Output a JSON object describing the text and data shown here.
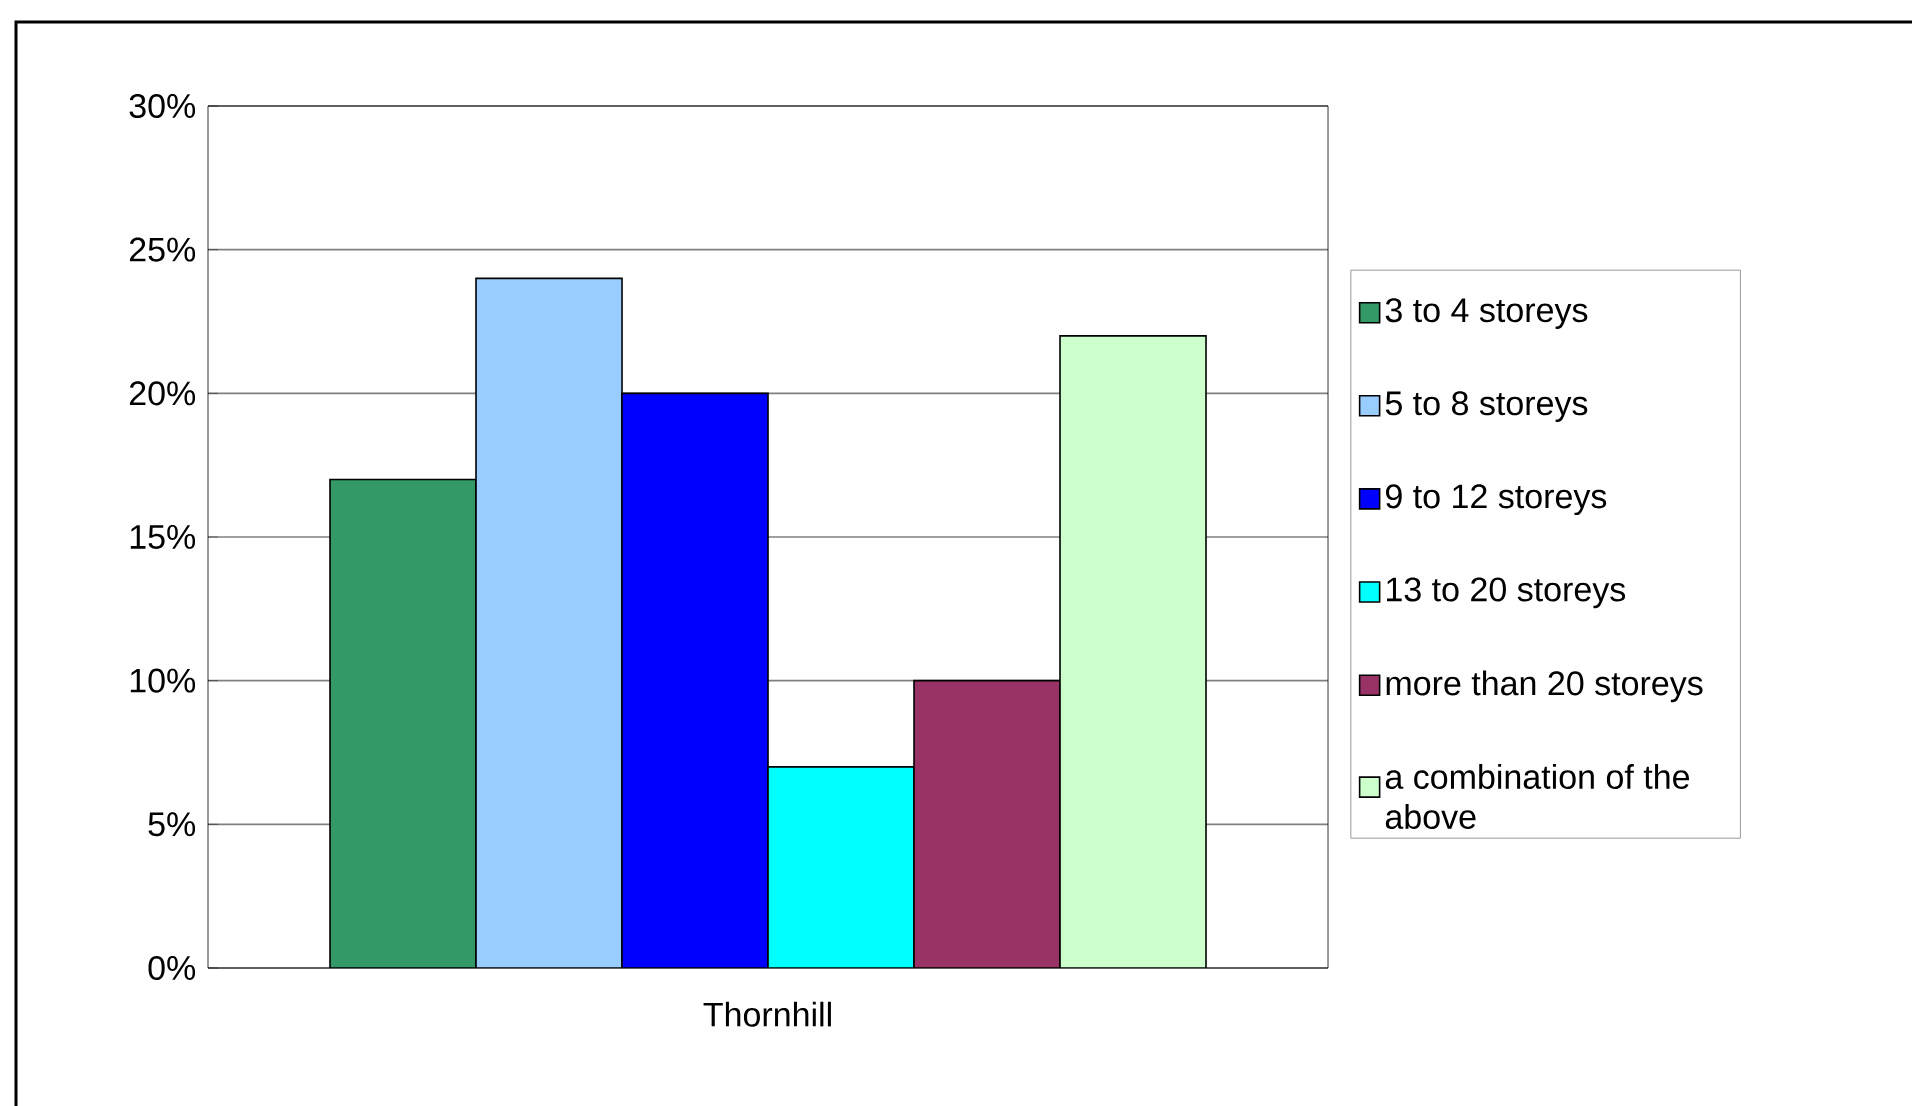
{
  "chart_data": {
    "type": "bar",
    "categories": [
      "Thornhill"
    ],
    "series": [
      {
        "name": "3 to 4 storeys",
        "color": "#339966",
        "values": [
          17
        ]
      },
      {
        "name": "5 to 8 storeys",
        "color": "#99ccff",
        "values": [
          24
        ]
      },
      {
        "name": "9 to 12 storeys",
        "color": "#0000ff",
        "values": [
          20
        ]
      },
      {
        "name": "13 to 20 storeys",
        "color": "#00ffff",
        "values": [
          7
        ]
      },
      {
        "name": "more than 20 storeys",
        "color": "#993366",
        "values": [
          10
        ]
      },
      {
        "name": "a combination of the above",
        "color": "#ccffcc",
        "values": [
          22
        ]
      }
    ],
    "ylim": [
      0,
      30
    ],
    "yticks": [
      {
        "value": 0,
        "label": "0%"
      },
      {
        "value": 5,
        "label": "5%"
      },
      {
        "value": 10,
        "label": "10%"
      },
      {
        "value": 15,
        "label": "15%"
      },
      {
        "value": 20,
        "label": "20%"
      },
      {
        "value": 25,
        "label": "25%"
      },
      {
        "value": 30,
        "label": "30%"
      }
    ],
    "grid": "y",
    "legend": "right"
  }
}
